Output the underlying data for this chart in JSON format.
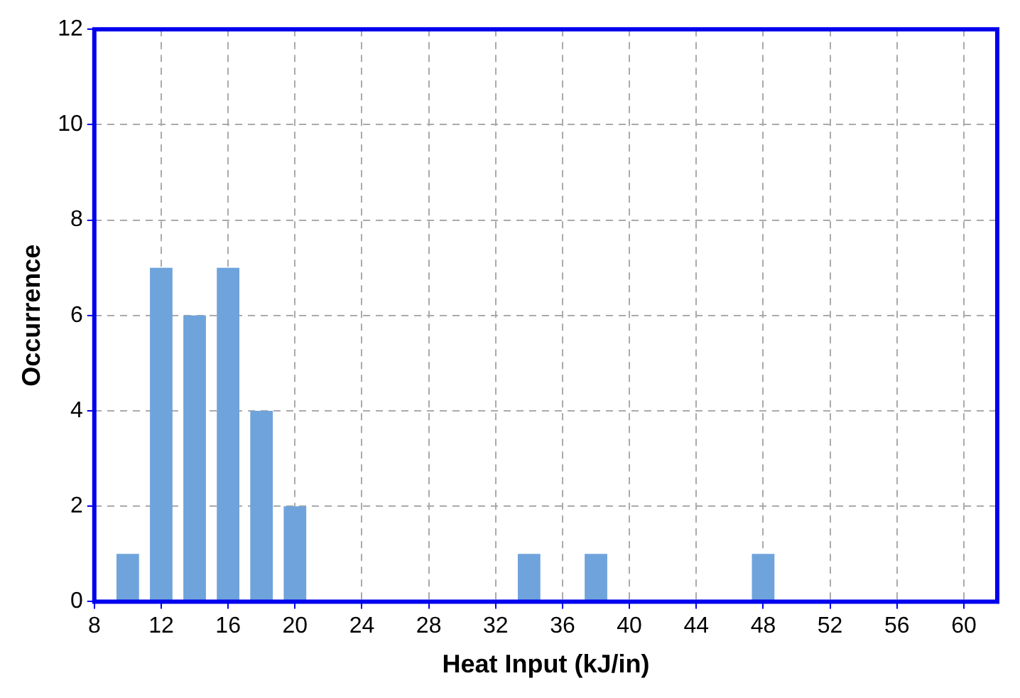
{
  "chart_data": {
    "type": "bar",
    "xlabel": "Heat Input (kJ/in)",
    "ylabel": "Occurrence",
    "x": [
      10,
      12,
      14,
      16,
      18,
      20,
      34,
      38,
      48
    ],
    "values": [
      1,
      7,
      6,
      7,
      4,
      2,
      1,
      1,
      1
    ],
    "color": "#6fa3dc",
    "xlim": [
      8,
      62
    ],
    "xticks": [
      8,
      12,
      16,
      20,
      24,
      28,
      32,
      36,
      40,
      44,
      48,
      52,
      56,
      60
    ],
    "ylim": [
      0,
      12
    ],
    "yticks": [
      0,
      2,
      4,
      6,
      8,
      10,
      12
    ],
    "grid": true,
    "legend": false
  }
}
